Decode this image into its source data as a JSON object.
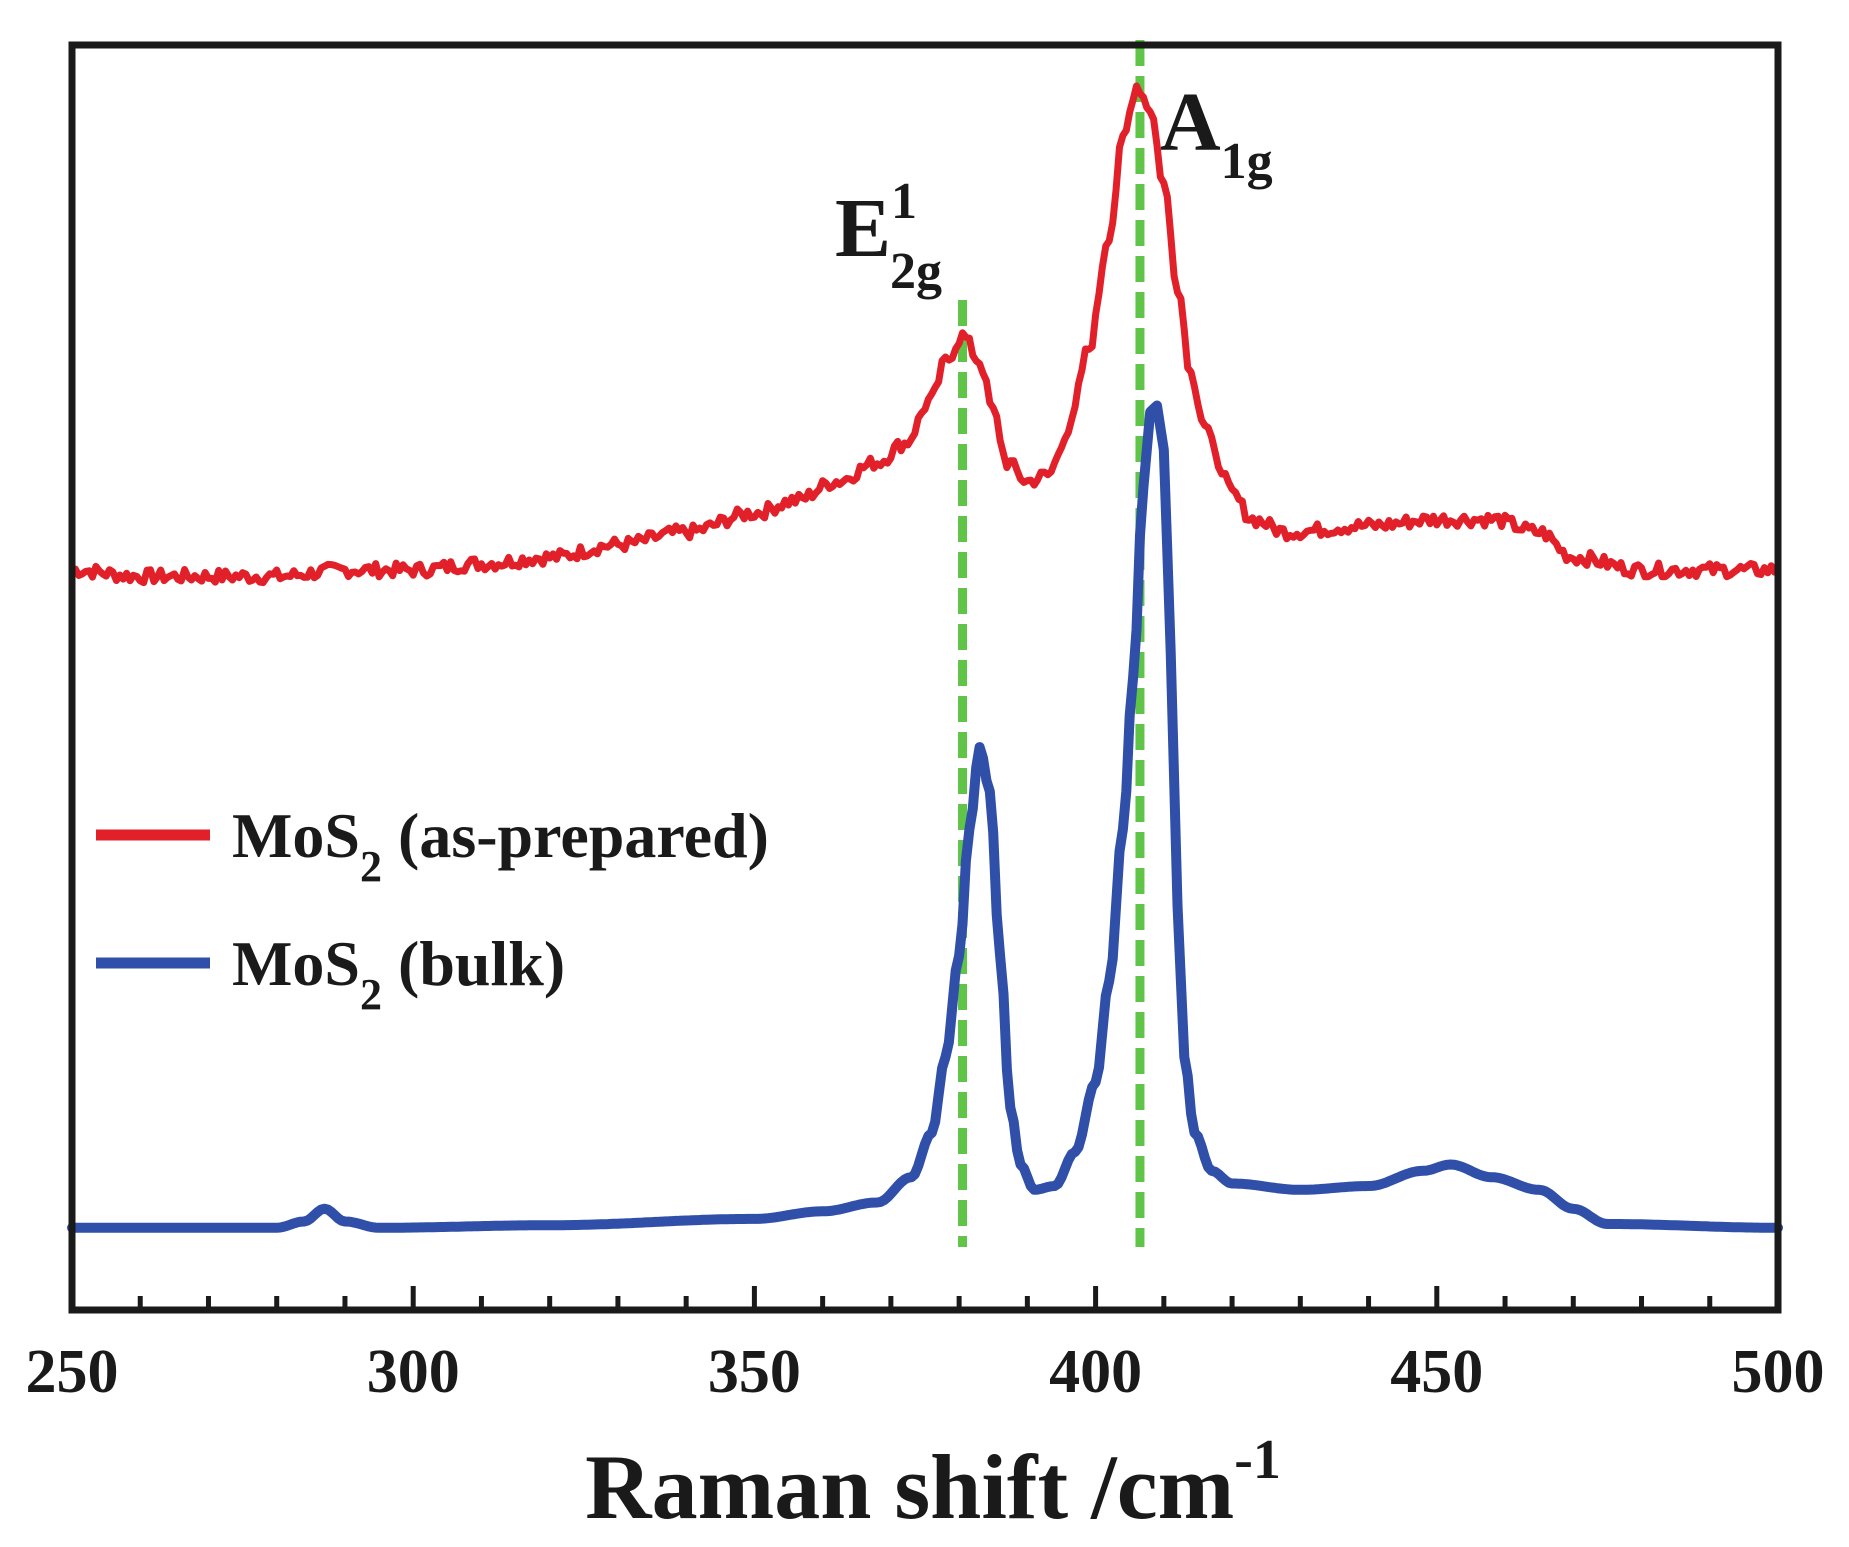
{
  "chart_data": {
    "type": "line",
    "title": "",
    "xlabel": {
      "main": "Raman shift /cm",
      "sup": "-1"
    },
    "ylabel": "",
    "xlim": [
      250,
      500
    ],
    "ylim": [
      0,
      10
    ],
    "x_ticks": [
      250,
      300,
      350,
      400,
      450,
      500
    ],
    "y_ticks_shown": false,
    "grid": false,
    "legend_position": "middle-left",
    "colors": {
      "axis": "#1a1a1a",
      "guide": "#5fc447"
    },
    "peak_markers": [
      {
        "name": "E2g",
        "x": 380.5,
        "label_main": "E",
        "label_sup": "1",
        "label_sub": "2g"
      },
      {
        "name": "A1g",
        "x": 406.5,
        "label_main": "A",
        "label_sup": "",
        "label_sub": "1g"
      }
    ],
    "series": [
      {
        "name": "as-prepared",
        "legend_main": "MoS",
        "legend_sub": "2",
        "legend_rest": " (as-prepared)",
        "color": "#e2202a",
        "noise": 0.055,
        "points": [
          [
            250,
            5.85
          ],
          [
            260,
            5.8
          ],
          [
            270,
            5.8
          ],
          [
            280,
            5.8
          ],
          [
            290,
            5.85
          ],
          [
            300,
            5.85
          ],
          [
            310,
            5.9
          ],
          [
            320,
            5.95
          ],
          [
            330,
            6.05
          ],
          [
            340,
            6.15
          ],
          [
            350,
            6.3
          ],
          [
            356,
            6.4
          ],
          [
            362,
            6.55
          ],
          [
            368,
            6.7
          ],
          [
            372,
            6.85
          ],
          [
            376,
            7.2
          ],
          [
            378,
            7.5
          ],
          [
            380.5,
            7.7
          ],
          [
            383,
            7.5
          ],
          [
            385,
            7.1
          ],
          [
            387,
            6.7
          ],
          [
            390,
            6.55
          ],
          [
            393,
            6.6
          ],
          [
            396,
            6.95
          ],
          [
            399,
            7.6
          ],
          [
            402,
            8.5
          ],
          [
            404,
            9.25
          ],
          [
            406,
            9.68
          ],
          [
            408,
            9.5
          ],
          [
            410,
            8.9
          ],
          [
            412,
            8.1
          ],
          [
            414,
            7.4
          ],
          [
            416,
            7.0
          ],
          [
            418,
            6.7
          ],
          [
            420,
            6.45
          ],
          [
            423,
            6.25
          ],
          [
            428,
            6.15
          ],
          [
            440,
            6.2
          ],
          [
            450,
            6.25
          ],
          [
            458,
            6.25
          ],
          [
            465,
            6.15
          ],
          [
            470,
            5.95
          ],
          [
            480,
            5.85
          ],
          [
            490,
            5.85
          ],
          [
            500,
            5.85
          ]
        ]
      },
      {
        "name": "bulk",
        "legend_main": "MoS",
        "legend_sub": "2",
        "legend_rest": " (bulk)",
        "color": "#2f4fa8",
        "noise": 0,
        "points": [
          [
            250,
            0.65
          ],
          [
            280,
            0.65
          ],
          [
            284,
            0.7
          ],
          [
            287,
            0.8
          ],
          [
            290,
            0.7
          ],
          [
            295,
            0.65
          ],
          [
            320,
            0.67
          ],
          [
            350,
            0.72
          ],
          [
            360,
            0.78
          ],
          [
            368,
            0.85
          ],
          [
            373,
            1.05
          ],
          [
            376,
            1.4
          ],
          [
            378,
            2.0
          ],
          [
            380,
            2.8
          ],
          [
            381.5,
            3.8
          ],
          [
            383,
            4.45
          ],
          [
            384.5,
            4.1
          ],
          [
            386,
            2.8
          ],
          [
            387.5,
            1.6
          ],
          [
            389,
            1.15
          ],
          [
            391,
            0.95
          ],
          [
            394,
            0.98
          ],
          [
            397,
            1.25
          ],
          [
            400,
            1.8
          ],
          [
            402,
            2.6
          ],
          [
            404,
            3.8
          ],
          [
            405.5,
            5.0
          ],
          [
            407,
            6.5
          ],
          [
            408,
            7.1
          ],
          [
            409,
            7.15
          ],
          [
            410,
            6.8
          ],
          [
            411,
            5.2
          ],
          [
            412,
            3.2
          ],
          [
            413,
            2.0
          ],
          [
            414.5,
            1.4
          ],
          [
            417,
            1.1
          ],
          [
            420,
            1.0
          ],
          [
            430,
            0.95
          ],
          [
            440,
            0.98
          ],
          [
            448,
            1.1
          ],
          [
            452,
            1.15
          ],
          [
            458,
            1.05
          ],
          [
            465,
            0.95
          ],
          [
            470,
            0.8
          ],
          [
            475,
            0.68
          ],
          [
            500,
            0.65
          ]
        ]
      }
    ]
  }
}
